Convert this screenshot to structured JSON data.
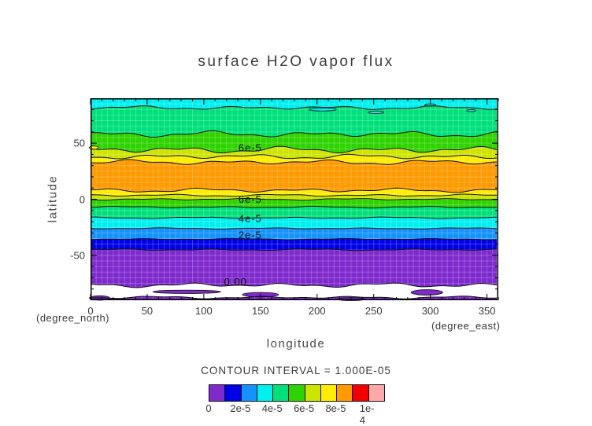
{
  "title": "surface H2O vapor flux",
  "axes": {
    "x": {
      "label": "longitude",
      "unit_note": "(degree_east)",
      "tick_labels": [
        "0",
        "50",
        "100",
        "150",
        "200",
        "250",
        "300",
        "350"
      ],
      "tick_values": [
        0,
        50,
        100,
        150,
        200,
        250,
        300,
        350
      ],
      "min": 0,
      "max": 360,
      "major_step": 50,
      "minor_step": 10
    },
    "y": {
      "label": "latitude",
      "unit_note": "(degree_north)",
      "tick_labels": [
        "50",
        "0",
        "-50"
      ],
      "tick_values": [
        50,
        0,
        -50
      ],
      "min": -90,
      "max": 90,
      "major_step": 50,
      "minor_step": 10
    }
  },
  "colorbar": {
    "title": "CONTOUR INTERVAL = 1.000E-05",
    "labels": [
      "0",
      "2e-5",
      "4e-5",
      "6e-5",
      "8e-5",
      "1e-4"
    ],
    "colors": [
      "#7E2ACD",
      "#0000E8",
      "#1493FF",
      "#00EFEF",
      "#00E07A",
      "#2ED300",
      "#CDE400",
      "#FFEC00",
      "#FF9A00",
      "#F20000",
      "#FFA8A8"
    ]
  },
  "chart_data": {
    "type": "filled-contour",
    "title": "surface H2O vapor flux",
    "xlabel": "longitude (degree_east)",
    "ylabel": "latitude (degree_north)",
    "xlim": [
      0,
      360
    ],
    "ylim": [
      -90,
      90
    ],
    "contour_interval": 1e-05,
    "levels": [
      0,
      1e-05,
      2e-05,
      3e-05,
      4e-05,
      5e-05,
      6e-05,
      7e-05,
      8e-05,
      9e-05,
      0.0001
    ],
    "grid": true,
    "legend_position": "bottom",
    "zonal_mean_profile": {
      "lat": [
        90,
        80,
        70,
        60,
        50,
        40,
        30,
        20,
        10,
        0,
        -10,
        -20,
        -30,
        -40,
        -50,
        -60,
        -70,
        -80,
        -90
      ],
      "flux": [
        3.5e-05,
        4.5e-05,
        4.8e-05,
        5.2e-05,
        5.8e-05,
        6.8e-05,
        8.5e-05,
        8.6e-05,
        7.8e-05,
        6e-05,
        4.6e-05,
        3.6e-05,
        2.6e-05,
        1.4e-05,
        8e-06,
        6e-06,
        5e-06,
        -2e-06,
        4e-06
      ]
    },
    "band_colors": [
      "#00EFEF",
      "#00E07A",
      "#2ED300",
      "#CDE400",
      "#FFEC00",
      "#FF9A00",
      "#FFEC00",
      "#CDE400",
      "#2ED300",
      "#00E07A",
      "#00EFEF",
      "#1493FF",
      "#0000E8",
      "#7E2ACD",
      "#FFFFFF",
      "#7E2ACD"
    ],
    "band_ranges": [
      "3e-5/4e-5",
      "4e-5/5e-5",
      "5e-5/6e-5",
      "6e-5/7e-5",
      "7e-5/8e-5",
      "8e-5/9e-5",
      "7e-5/8e-5",
      "6e-5/7e-5",
      "5e-5/6e-5",
      "4e-5/5e-5",
      "3e-5/4e-5",
      "2e-5/3e-5",
      "1e-5/2e-5",
      "0/1e-5",
      "below 0",
      "0/1e-5"
    ],
    "boundaries": [
      {
        "level": "4e-5",
        "lat": 81.5,
        "amp": 2.0,
        "seed": 1
      },
      {
        "level": "5e-5",
        "lat": 58,
        "amp": 3.2,
        "seed": 2
      },
      {
        "level": "6e-5",
        "lat": 44,
        "amp": 3.5,
        "seed": 3
      },
      {
        "level": "7e-5",
        "lat": 38,
        "amp": 2.6,
        "seed": 4
      },
      {
        "level": "8e-5",
        "lat": 33,
        "amp": 2.6,
        "seed": 5
      },
      {
        "level": "8e-5",
        "lat": 8,
        "amp": 2.2,
        "seed": 6
      },
      {
        "level": "7e-5",
        "lat": 3.5,
        "amp": 1.2,
        "seed": 7
      },
      {
        "level": "6e-5",
        "lat": 0,
        "amp": 0.9,
        "seed": 8
      },
      {
        "level": "5e-5",
        "lat": -7,
        "amp": 0.9,
        "seed": 9
      },
      {
        "level": "4e-5",
        "lat": -16.5,
        "amp": 0.8,
        "seed": 10
      },
      {
        "level": "3e-5",
        "lat": -26,
        "amp": 0.7,
        "seed": 11
      },
      {
        "level": "2e-5",
        "lat": -35.5,
        "amp": 0.7,
        "seed": 12
      },
      {
        "level": "1e-5",
        "lat": -45,
        "amp": 0.8,
        "seed": 13
      },
      {
        "level": "0.00",
        "lat": -76.5,
        "amp": 2.4,
        "seed": 14
      },
      {
        "level": "0.00",
        "lat": -87.5,
        "amp": 1.4,
        "seed": 15
      }
    ],
    "contour_labels": [
      {
        "text": "6e-5",
        "x": 141,
        "lat": 46
      },
      {
        "text": "6e-5",
        "x": 141,
        "lat": 0
      },
      {
        "text": "4e-5",
        "x": 141,
        "lat": -17
      },
      {
        "text": "2e-5",
        "x": 141,
        "lat": -32
      },
      {
        "text": "0.00",
        "x": 128,
        "lat": -73.5
      }
    ],
    "blobs": [
      {
        "color": "#00EFEF",
        "x": 205,
        "lat": 80,
        "rx": 12,
        "ry": 1.4
      },
      {
        "color": "#00EFEF",
        "x": 252,
        "lat": 77.5,
        "rx": 7,
        "ry": 1.1
      },
      {
        "color": "#00EFEF",
        "x": 300,
        "lat": 84,
        "rx": 5,
        "ry": 1.0
      },
      {
        "color": "#00EFEF",
        "x": 336,
        "lat": 79,
        "rx": 4,
        "ry": 0.9
      },
      {
        "color": "#FFEC00",
        "x": 3,
        "lat": 46,
        "rx": 4,
        "ry": 1.5
      },
      {
        "color": "#7E2ACD",
        "x": 85,
        "lat": -82.5,
        "rx": 30,
        "ry": 1.5
      },
      {
        "color": "#7E2ACD",
        "x": 150,
        "lat": -85,
        "rx": 16,
        "ry": 2.0
      },
      {
        "color": "#7E2ACD",
        "x": 297,
        "lat": -83,
        "rx": 14,
        "ry": 2.4
      },
      {
        "color": "#7E2ACD",
        "x": 8,
        "lat": -88,
        "rx": 9,
        "ry": 2.0
      },
      {
        "color": "#7E2ACD",
        "x": 230,
        "lat": -89,
        "rx": 12,
        "ry": 1.3
      }
    ],
    "line_color": "#111111"
  }
}
